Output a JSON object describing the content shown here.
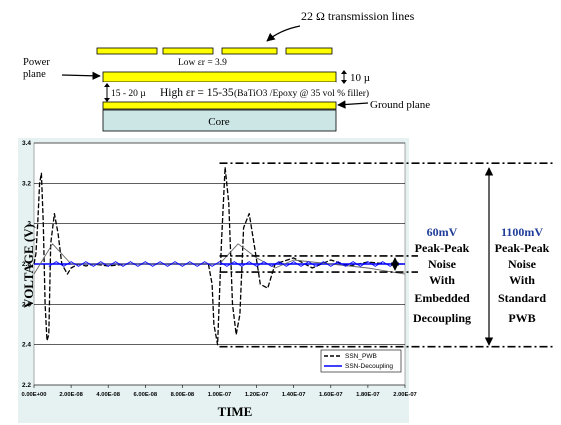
{
  "stack": {
    "tline_label": "22 Ω transmission lines",
    "low_er": "Low εr = 3.9",
    "power_plane": "Power plane",
    "thickness_10": "10 µ",
    "dielectric_thickness": "15 - 20 µ",
    "high_er_prefix": "High εr = 15-35",
    "filler": "(BaTiO3 /Epoxy @ 35 vol % filler)",
    "ground_plane": "Ground plane",
    "core": "Core"
  },
  "annotations": {
    "left_value": "60mV",
    "left_lines": [
      "Peak-Peak",
      "Noise",
      "With",
      "Embedded",
      "Decoupling"
    ],
    "right_value": "1100mV",
    "right_lines": [
      "Peak-Peak",
      "Noise",
      "With",
      "Standard",
      "PWB"
    ]
  },
  "colors": {
    "plane": "#ffff00",
    "core": "#cce6e6",
    "plot_bg": "#e6f2f2",
    "annotation_value": "#1f3d99",
    "decoupling": "#0000ff"
  },
  "chart_data": {
    "type": "line",
    "ylabel": "VOLTAGE (V)",
    "xlabel": "TIME",
    "xlim": [
      0,
      2e-07
    ],
    "ylim": [
      2.2,
      3.4
    ],
    "x_ticks": [
      "0.00E+00",
      "2.00E-08",
      "4.00E-08",
      "6.00E-08",
      "8.00E-08",
      "1.00E-07",
      "1.20E-07",
      "1.40E-07",
      "1.60E-07",
      "1.80E-07",
      "2.00E-07"
    ],
    "y_ticks": [
      "2.2",
      "2.4",
      "2.6",
      "2.8",
      "3",
      "3.2",
      "3.4"
    ],
    "grid": "horizontal",
    "legend_position": "bottom-right",
    "series": [
      {
        "name": "SSN_PWB",
        "style": "dashed",
        "x": [
          0,
          1e-09,
          2e-09,
          3e-09,
          4e-09,
          5e-09,
          6e-09,
          7e-09,
          8e-09,
          9e-09,
          1.1e-08,
          1.3e-08,
          1.5e-08,
          1.8e-08,
          2e-08,
          2.4e-08,
          2.8e-08,
          3.2e-08,
          4e-08,
          5e-08,
          6e-08,
          7e-08,
          8e-08,
          9e-08,
          9.4e-08,
          9.6e-08,
          9.7e-08,
          9.9e-08,
          1.01e-07,
          1.03e-07,
          1.05e-07,
          1.07e-07,
          1.09e-07,
          1.11e-07,
          1.13e-07,
          1.16e-07,
          1.19e-07,
          1.22e-07,
          1.26e-07,
          1.3e-07,
          1.4e-07,
          1.5e-07,
          1.6e-07,
          1.7e-07,
          1.8e-07,
          1.9e-07,
          2e-07
        ],
        "y": [
          2.8,
          2.85,
          3.0,
          3.2,
          3.25,
          3.0,
          2.6,
          2.42,
          2.45,
          2.9,
          3.05,
          2.95,
          2.8,
          2.75,
          2.78,
          2.8,
          2.79,
          2.8,
          2.79,
          2.8,
          2.8,
          2.8,
          2.8,
          2.8,
          2.8,
          2.7,
          2.5,
          2.4,
          2.9,
          3.28,
          3.1,
          2.6,
          2.45,
          2.55,
          2.98,
          3.05,
          2.88,
          2.7,
          2.68,
          2.8,
          2.83,
          2.78,
          2.82,
          2.79,
          2.81,
          2.8,
          2.8
        ]
      },
      {
        "name": "SSN-Decoupling",
        "style": "solid",
        "x": [
          0,
          2e-08,
          4e-08,
          6e-08,
          8e-08,
          1e-07,
          1.2e-07,
          1.4e-07,
          1.6e-07,
          1.8e-07,
          2e-07
        ],
        "y": [
          2.8,
          2.8,
          2.8,
          2.8,
          2.8,
          2.8,
          2.8,
          2.8,
          2.8,
          2.8,
          2.8
        ]
      },
      {
        "name": "",
        "style": "solid-gray",
        "x": [
          0,
          1e-08,
          2e-08,
          4e-08,
          6e-08,
          8e-08,
          1e-07,
          1.1e-07,
          1.2e-07,
          1.3e-07,
          1.4e-07,
          1.6e-07,
          1.8e-07,
          2e-07
        ],
        "y": [
          2.75,
          2.9,
          2.8,
          2.8,
          2.8,
          2.8,
          2.8,
          2.9,
          2.83,
          2.78,
          2.82,
          2.8,
          2.78,
          2.75
        ]
      }
    ],
    "reference_lines": [
      {
        "y": 3.3,
        "style": "dash-dot"
      },
      {
        "y": 2.84,
        "style": "dash-dot"
      },
      {
        "y": 2.76,
        "style": "dash-dot"
      },
      {
        "y": 2.39,
        "style": "dash-dot"
      }
    ],
    "legend": [
      "SSN_PWB",
      "SSN-Decoupling"
    ]
  }
}
